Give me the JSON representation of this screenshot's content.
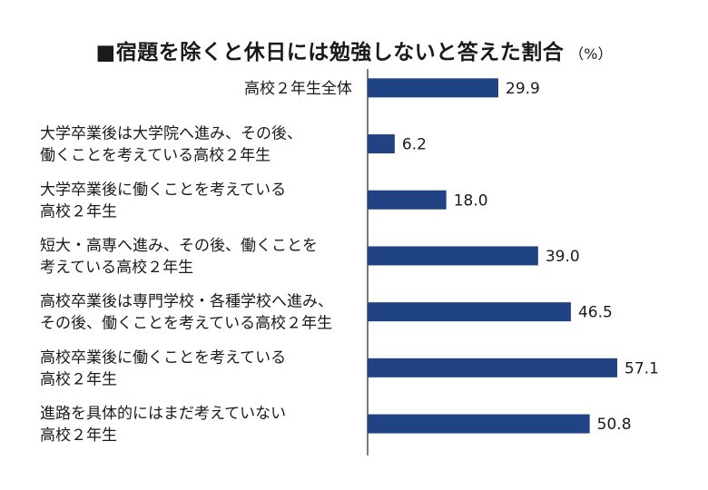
{
  "title": "■宿題を除くと休日には勉強しないと答えた割合",
  "unit": "（%）",
  "colors": {
    "bar": "#1f4383",
    "axis": "#222222",
    "text": "#1a1a1a"
  },
  "chart_data": {
    "type": "bar",
    "orientation": "horizontal",
    "title": "■宿題を除くと休日には勉強しないと答えた割合",
    "unit": "（%）",
    "categories": [
      [
        "高校２年生全体"
      ],
      [
        "大学卒業後は大学院へ進み、その後、",
        "働くことを考えている高校２年生"
      ],
      [
        "大学卒業後に働くことを考えている",
        "高校２年生"
      ],
      [
        "短大・高専へ進み、その後、働くことを",
        "考えている高校２年生"
      ],
      [
        "高校卒業後は専門学校・各種学校へ進み、",
        "その後、働くことを考えている高校２年生"
      ],
      [
        "高校卒業後に働くことを考えている",
        "高校２年生"
      ],
      [
        "進路を具体的にはまだ考えていない",
        "高校２年生"
      ]
    ],
    "values": [
      29.9,
      6.2,
      18.0,
      39.0,
      46.5,
      57.1,
      50.8
    ],
    "value_labels": [
      "29.9",
      "6.2",
      "18.0",
      "39.0",
      "46.5",
      "57.1",
      "50.8"
    ],
    "xlim": [
      0,
      60
    ],
    "grid": false,
    "legend": "none"
  }
}
